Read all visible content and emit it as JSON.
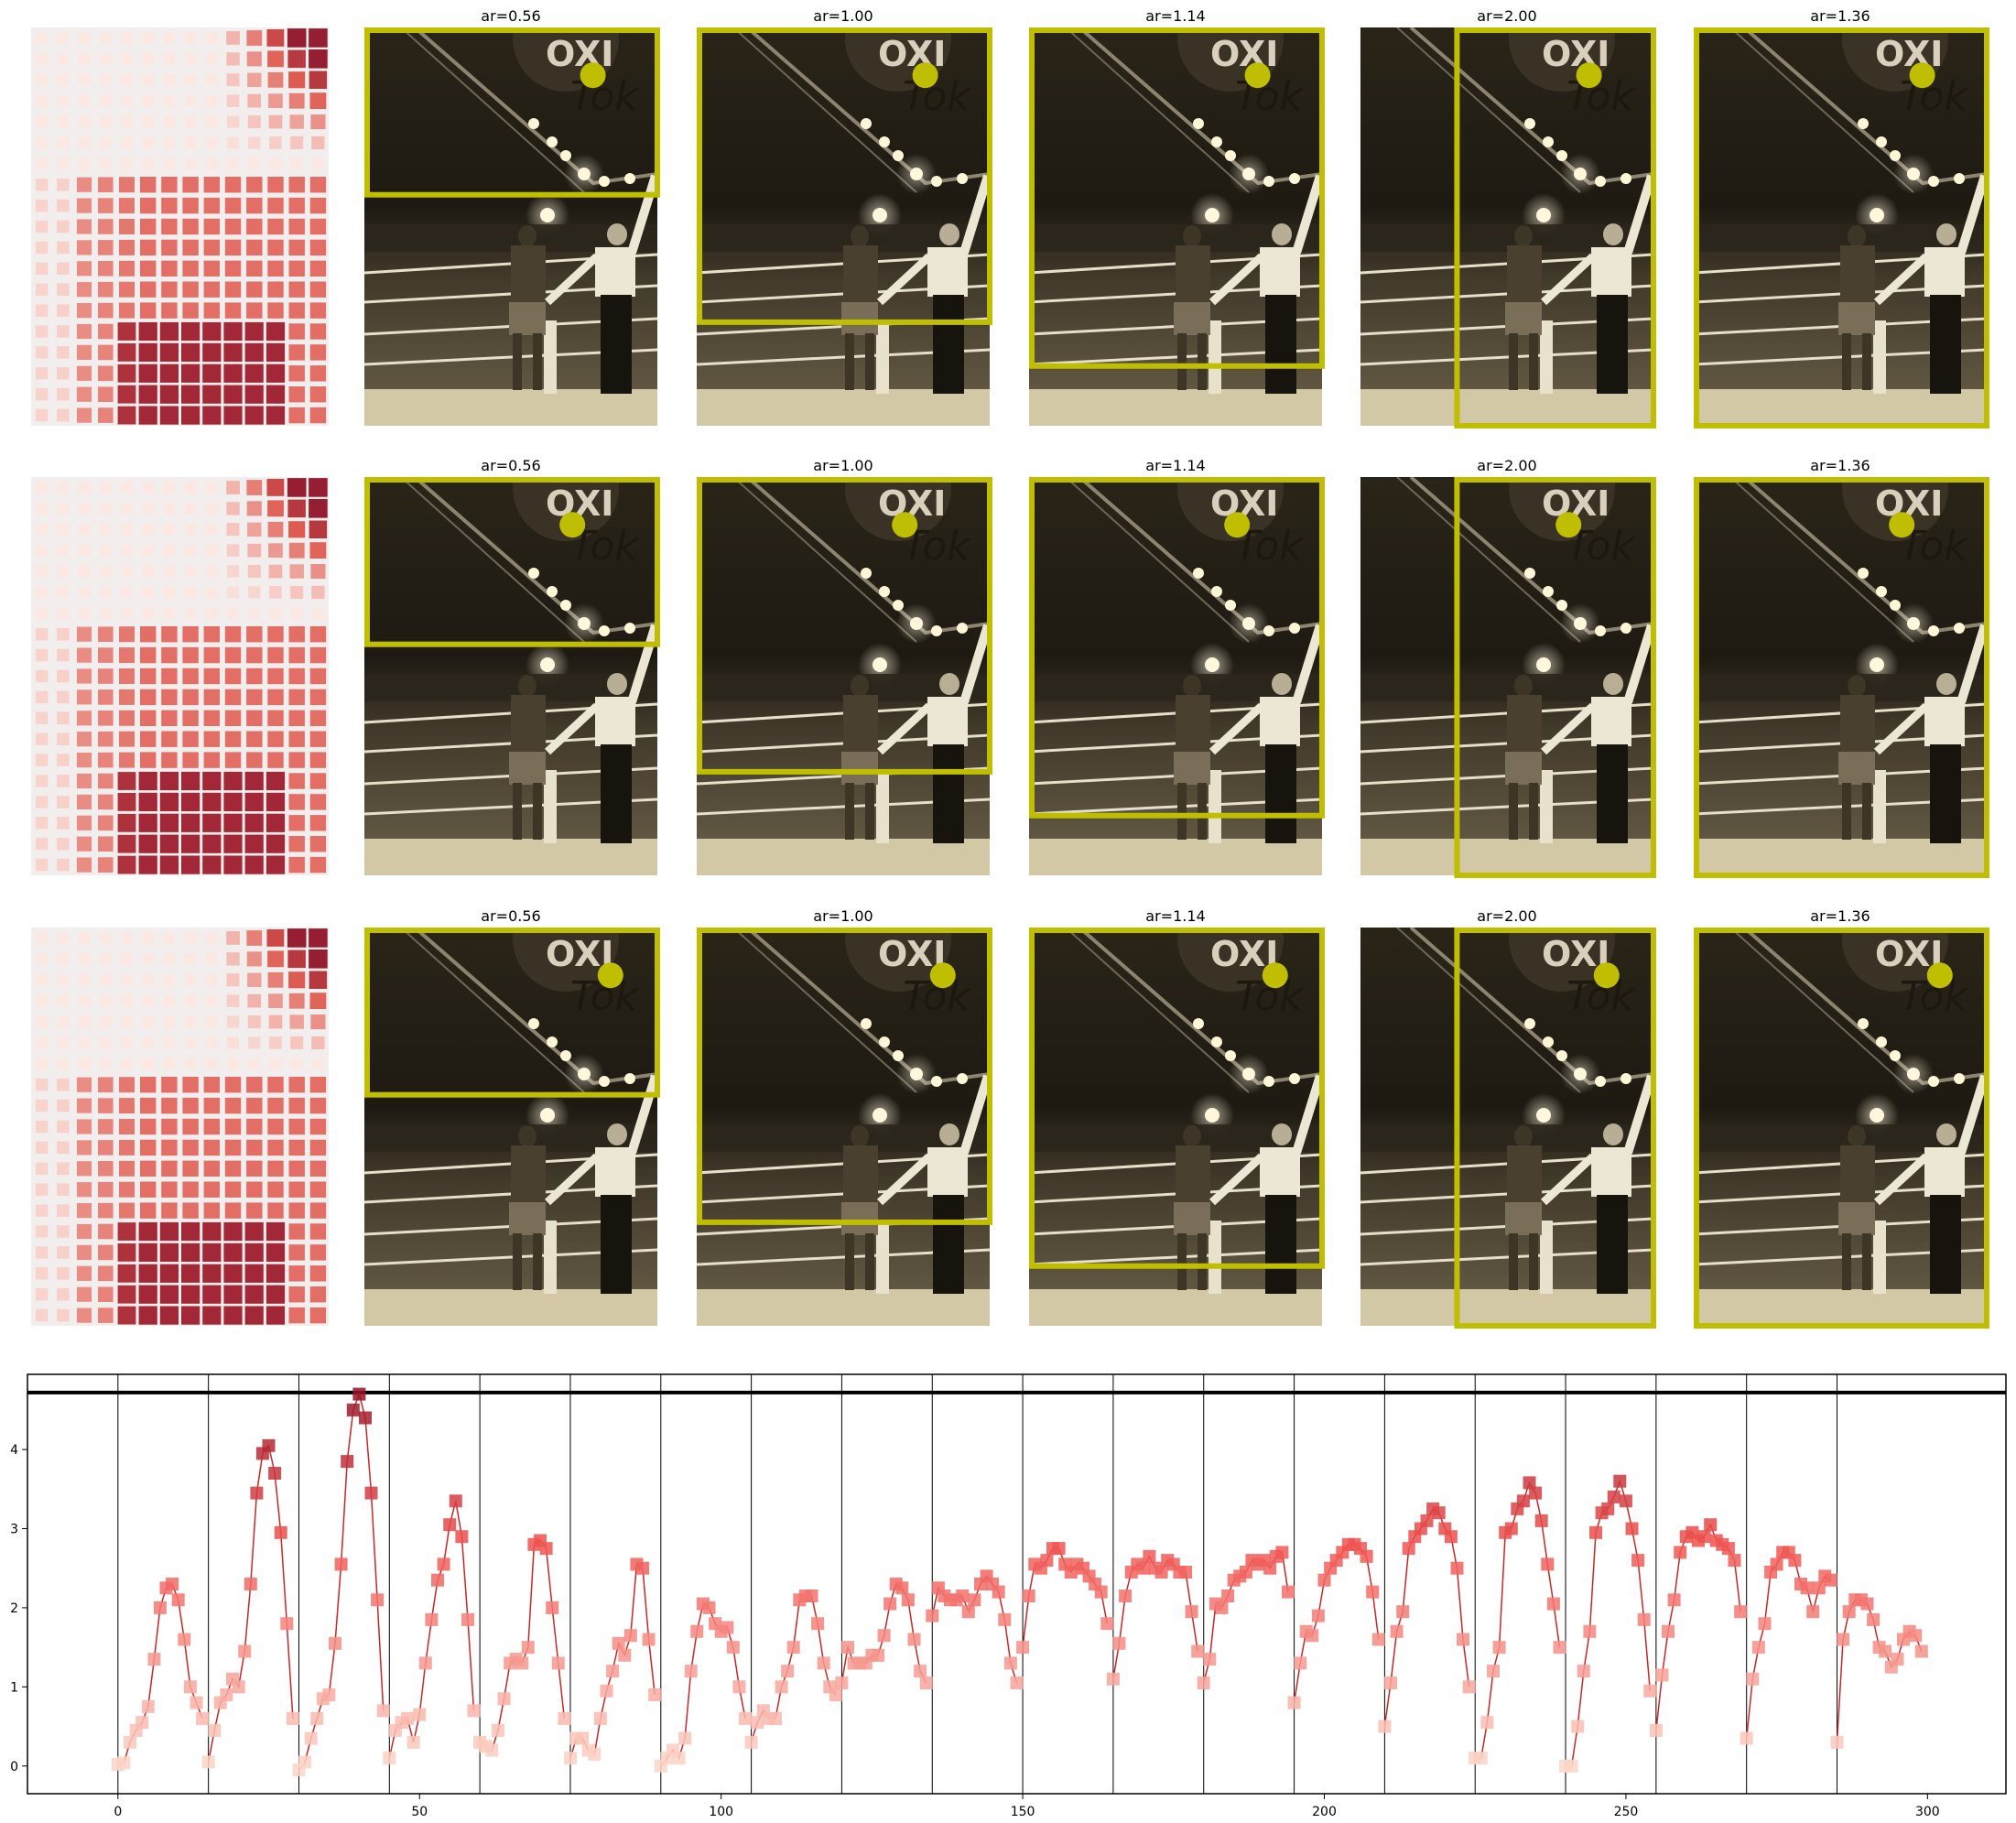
{
  "grid": {
    "rows": [
      {
        "heatmap_color": "#d9534f",
        "panels": [
          {
            "title": "ar=0.56",
            "crop": [
              0.0,
              0.0,
              1.0,
              0.42
            ],
            "dot": [
              0.78,
              0.12
            ]
          },
          {
            "title": "ar=1.00",
            "crop": [
              0.0,
              0.0,
              1.0,
              0.74
            ],
            "dot": [
              0.78,
              0.12
            ]
          },
          {
            "title": "ar=1.14",
            "crop": [
              0.0,
              0.0,
              1.0,
              0.85
            ],
            "dot": [
              0.78,
              0.12
            ]
          },
          {
            "title": "ar=2.00",
            "crop": [
              0.32,
              0.0,
              1.0,
              1.0
            ],
            "dot": [
              0.78,
              0.12
            ]
          },
          {
            "title": "ar=1.36",
            "crop": [
              0.0,
              0.0,
              1.0,
              1.0
            ],
            "dot": [
              0.78,
              0.12
            ]
          }
        ]
      },
      {
        "heatmap_color": "#d9534f",
        "panels": [
          {
            "title": "ar=0.56",
            "crop": [
              0.0,
              0.0,
              1.0,
              0.42
            ],
            "dot": [
              0.71,
              0.12
            ]
          },
          {
            "title": "ar=1.00",
            "crop": [
              0.0,
              0.0,
              1.0,
              0.74
            ],
            "dot": [
              0.71,
              0.12
            ]
          },
          {
            "title": "ar=1.14",
            "crop": [
              0.0,
              0.0,
              1.0,
              0.85
            ],
            "dot": [
              0.71,
              0.12
            ]
          },
          {
            "title": "ar=2.00",
            "crop": [
              0.32,
              0.0,
              1.0,
              1.0
            ],
            "dot": [
              0.71,
              0.12
            ]
          },
          {
            "title": "ar=1.36",
            "crop": [
              0.0,
              0.0,
              1.0,
              1.0
            ],
            "dot": [
              0.71,
              0.12
            ]
          }
        ]
      },
      {
        "heatmap_color": "#d9534f",
        "panels": [
          {
            "title": "ar=0.56",
            "crop": [
              0.0,
              0.0,
              1.0,
              0.42
            ],
            "dot": [
              0.84,
              0.12
            ]
          },
          {
            "title": "ar=1.00",
            "crop": [
              0.0,
              0.0,
              1.0,
              0.74
            ],
            "dot": [
              0.84,
              0.12
            ]
          },
          {
            "title": "ar=1.14",
            "crop": [
              0.0,
              0.0,
              1.0,
              0.85
            ],
            "dot": [
              0.84,
              0.12
            ]
          },
          {
            "title": "ar=2.00",
            "crop": [
              0.32,
              0.0,
              1.0,
              1.0
            ],
            "dot": [
              0.84,
              0.12
            ]
          },
          {
            "title": "ar=1.36",
            "crop": [
              0.0,
              0.0,
              1.0,
              1.0
            ],
            "dot": [
              0.84,
              0.12
            ]
          }
        ]
      }
    ],
    "accent_color": "#c0be00"
  },
  "chart_data": {
    "type": "line",
    "title": "",
    "xlabel": "",
    "ylabel": "",
    "xlim": [
      -15,
      313
    ],
    "ylim": [
      -0.35,
      4.95
    ],
    "xticks": [
      0,
      50,
      100,
      150,
      200,
      250,
      300
    ],
    "yticks": [
      0,
      1,
      2,
      3,
      4
    ],
    "vlines": [
      0,
      15,
      30,
      45,
      60,
      75,
      90,
      105,
      120,
      135,
      150,
      165,
      180,
      195,
      210,
      225,
      240,
      255,
      270,
      285
    ],
    "hline": 4.72,
    "line_color": "#c62828",
    "marker": "square",
    "grid": false,
    "segments": [
      [
        0.02,
        0.04,
        0.3,
        0.45,
        0.55,
        0.75,
        1.35,
        2.0,
        2.25,
        2.3,
        2.1,
        1.6,
        1.0,
        0.8,
        0.6
      ],
      [
        0.05,
        0.45,
        0.8,
        0.9,
        1.1,
        1.0,
        1.45,
        2.3,
        3.45,
        3.95,
        4.05,
        3.7,
        2.95,
        1.8,
        0.6
      ],
      [
        -0.05,
        0.05,
        0.35,
        0.6,
        0.85,
        0.9,
        1.55,
        2.55,
        3.85,
        4.5,
        4.7,
        4.4,
        3.45,
        2.1,
        0.7
      ],
      [
        0.1,
        0.45,
        0.55,
        0.6,
        0.3,
        0.65,
        1.3,
        1.85,
        2.35,
        2.55,
        3.05,
        3.35,
        2.9,
        1.85,
        0.7
      ],
      [
        0.3,
        0.25,
        0.2,
        0.45,
        0.85,
        1.3,
        1.35,
        1.3,
        1.5,
        2.8,
        2.85,
        2.75,
        2.0,
        1.3,
        0.6
      ],
      [
        0.1,
        0.35,
        0.35,
        0.2,
        0.15,
        0.6,
        0.95,
        1.2,
        1.55,
        1.4,
        1.65,
        2.55,
        2.5,
        1.6,
        0.9
      ],
      [
        0.0,
        0.1,
        0.2,
        0.1,
        0.35,
        1.2,
        1.7,
        2.05,
        2.0,
        1.8,
        1.7,
        1.75,
        1.5,
        1.0,
        0.6
      ],
      [
        0.3,
        0.55,
        0.7,
        0.6,
        0.6,
        1.0,
        1.2,
        1.5,
        2.1,
        2.15,
        2.15,
        1.8,
        1.3,
        1.0,
        0.9
      ],
      [
        1.05,
        1.5,
        1.3,
        1.3,
        1.3,
        1.4,
        1.4,
        1.65,
        2.05,
        2.3,
        2.25,
        2.1,
        1.6,
        1.2,
        1.05
      ],
      [
        1.9,
        2.25,
        2.15,
        2.1,
        2.1,
        2.15,
        1.95,
        2.1,
        2.3,
        2.4,
        2.3,
        2.2,
        1.85,
        1.3,
        1.05
      ],
      [
        1.5,
        2.15,
        2.55,
        2.5,
        2.6,
        2.75,
        2.75,
        2.55,
        2.45,
        2.55,
        2.5,
        2.4,
        2.3,
        2.2,
        1.8
      ],
      [
        1.1,
        1.55,
        2.15,
        2.45,
        2.55,
        2.5,
        2.65,
        2.5,
        2.45,
        2.6,
        2.55,
        2.45,
        2.45,
        1.95,
        1.45
      ],
      [
        1.05,
        1.35,
        2.05,
        2.0,
        2.15,
        2.35,
        2.4,
        2.45,
        2.6,
        2.55,
        2.6,
        2.5,
        2.65,
        2.7,
        2.2
      ],
      [
        0.8,
        1.3,
        1.7,
        1.65,
        1.9,
        2.35,
        2.5,
        2.6,
        2.7,
        2.8,
        2.8,
        2.75,
        2.65,
        2.2,
        1.6
      ],
      [
        0.5,
        1.05,
        1.7,
        1.95,
        2.75,
        2.9,
        3.0,
        3.1,
        3.25,
        3.2,
        3.0,
        2.9,
        2.5,
        1.6,
        1.0
      ],
      [
        0.1,
        0.1,
        0.55,
        1.2,
        1.5,
        2.95,
        3.0,
        3.25,
        3.35,
        3.58,
        3.45,
        3.1,
        2.55,
        2.05,
        1.5
      ],
      [
        0.0,
        0.0,
        0.5,
        1.2,
        1.7,
        2.95,
        3.2,
        3.25,
        3.4,
        3.6,
        3.35,
        3.0,
        2.6,
        1.85,
        0.95
      ],
      [
        0.45,
        1.15,
        1.7,
        2.1,
        2.7,
        2.9,
        2.95,
        2.85,
        2.9,
        3.05,
        2.85,
        2.8,
        2.75,
        2.6,
        1.95
      ],
      [
        0.35,
        1.1,
        1.5,
        1.8,
        2.45,
        2.55,
        2.7,
        2.7,
        2.6,
        2.3,
        2.25,
        1.95,
        2.25,
        2.4,
        2.35
      ],
      [
        0.3,
        1.6,
        1.95,
        2.1,
        2.1,
        2.05,
        1.85,
        1.5,
        1.45,
        1.25,
        1.35,
        1.6,
        1.7,
        1.65,
        1.45
      ]
    ]
  }
}
